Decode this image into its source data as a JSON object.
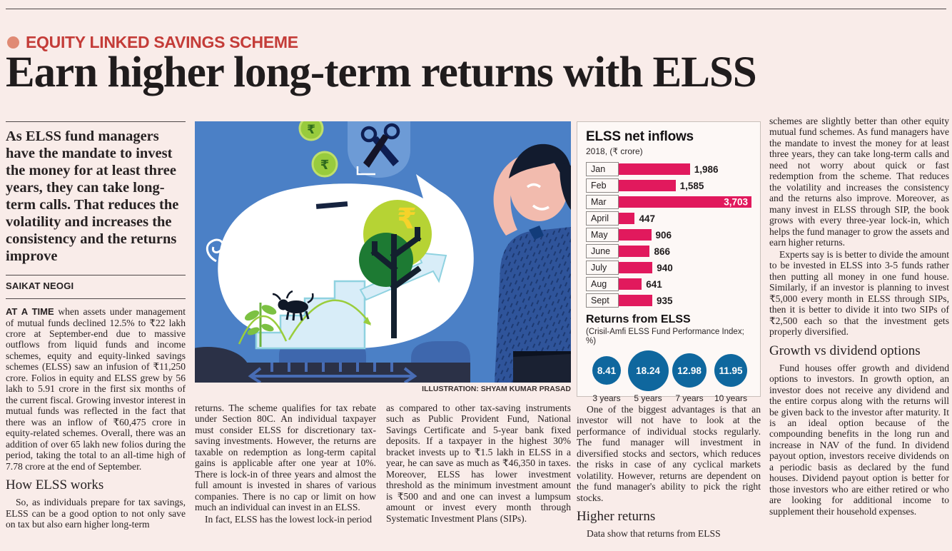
{
  "masthead": {
    "kicker": "EQUITY LINKED SAVINGS SCHEME",
    "headline": "Earn higher long-term returns with ELSS"
  },
  "accents": {
    "kicker_red": "#c43c38",
    "bullet_salmon": "#e08a74",
    "bar_pink": "#e1195d",
    "circle_blue": "#0f679e",
    "page_background": "#f9ece9"
  },
  "left_column": {
    "standfirst": "As ELSS fund managers have the mandate to invest the money for at least three years, they can take long-term calls. That reduces the volatility and increases the consistency and the returns improve",
    "byline": "SAIKAT NEOGI",
    "lead_in": "AT A TIME",
    "para1": "when assets under management of mutual funds declined 12.5% to ₹22 lakh crore at September-end due to massive outflows from liquid funds and income schemes, equity and equity-linked savings schemes (ELSS) saw an infusion of ₹11,250 crore. Folios in equity and ELSS grew by 56 lakh to 5.91 crore in the first six months of the current fiscal. Growing investor interest in mutual funds was reflected in the fact that there was an inflow of ₹60,475 crore in equity-related schemes. Overall, there was an addition of over 65 lakh new folios during the period, taking the total to an all-time high of 7.78 crore at the end of September.",
    "subhead": "How ELSS works",
    "para2": "So, as individuals prepare for tax savings, ELSS can be a good option to not only save on tax but also earn higher long-term"
  },
  "column2": {
    "para1": "returns. The scheme qualifies for tax rebate under Section 80C. An individual taxpayer must consider ELSS for discretionary tax-saving investments. However, the returns are taxable on redemption as long-term capital gains is applicable after one year at 10%. There is lock-in of three years and almost the full amount is invested in shares of various companies. There is no cap or limit on how much an individual can invest in an ELSS.",
    "para2": "In fact, ELSS has the lowest lock-in period"
  },
  "column3": {
    "para1": "as compared to other tax-saving instruments such as Public Provident Fund, National Savings Certificate and 5-year bank fixed deposits. If a taxpayer in the highest 30% bracket invests up to ₹1.5 lakh in ELSS in a year, he can save as much as ₹46,350 in taxes. Moreover, ELSS has lower investment threshold as the minimum investment amount is ₹500 and and one can invest a lumpsum amount or invest every month through Systematic Investment Plans (SIPs)."
  },
  "column4": {
    "para1": "One of the biggest advantages is that an investor will not have to look at the performance of individual stocks regularly. The fund manager will investment in diversified stocks and sectors, which reduces the risks in case of any cyclical markets volatility. However, returns are dependent on the fund manager's ability to pick the right stocks.",
    "subhead": "Higher returns",
    "para2": "Data show that returns from ELSS"
  },
  "right_column": {
    "para1": "schemes are slightly better than other equity mutual fund schemes. As fund managers have the mandate to invest the money for at least three years, they can take long-term calls and need not worry about quick or fast redemption from the scheme. That reduces the volatility and increases the consistency and the returns also improve. Moreover, as many invest in ELSS through SIP, the book grows with every three-year lock-in, which helps the fund manager to grow the assets and earn higher returns.",
    "para2": "Experts say is is better to divide the amount to be invested in ELSS into 3-5 funds rather then putting all money in one fund house. Similarly, if an investor is planning to invest ₹5,000 every month in ELSS through SIPs, then it is better to divide it into two SIPs of ₹2,500 each so that the investment gets properly diversified.",
    "subhead": "Growth vs dividend options",
    "para3": "Fund houses offer growth and dividend options to investors. In growth option, an investor does not receive any dividend and the entire corpus along with the returns will be given back to the investor after maturity. It is an ideal option because of the compounding benefits in the long run and increase in NAV of the fund. In dividend payout option, investors receive dividends on a periodic basis as declared by the fund houses. Dividend payout option is better for those investors who are either retired or who are looking for additional income to supplement their household expenses."
  },
  "illustration": {
    "caption": "ILLUSTRATION: SHYAM KUMAR PRASAD"
  },
  "chart_data": [
    {
      "type": "bar",
      "orientation": "horizontal",
      "title": "ELSS net inflows",
      "subtitle": "2018, (₹ crore)",
      "categories": [
        "Jan",
        "Feb",
        "Mar",
        "April",
        "May",
        "June",
        "July",
        "Aug",
        "Sept"
      ],
      "values": [
        1986,
        1585,
        3703,
        447,
        906,
        866,
        940,
        641,
        935
      ],
      "value_labels": [
        "1,986",
        "1,585",
        "3,703",
        "447",
        "906",
        "866",
        "940",
        "641",
        "935"
      ],
      "xlim": [
        0,
        3703
      ],
      "grid": false,
      "legend": "none",
      "bar_color": "#e1195d"
    },
    {
      "type": "bubble",
      "title": "Returns from ELSS",
      "subtitle": "(Crisil-Amfi ELSS Fund Performance Index; %)",
      "categories": [
        "3 years",
        "5 years",
        "7 years",
        "10 years"
      ],
      "values": [
        8.41,
        18.24,
        12.98,
        11.95
      ],
      "value_labels": [
        "8.41",
        "18.24",
        "12.98",
        "11.95"
      ],
      "circle_color": "#0f679e"
    }
  ]
}
